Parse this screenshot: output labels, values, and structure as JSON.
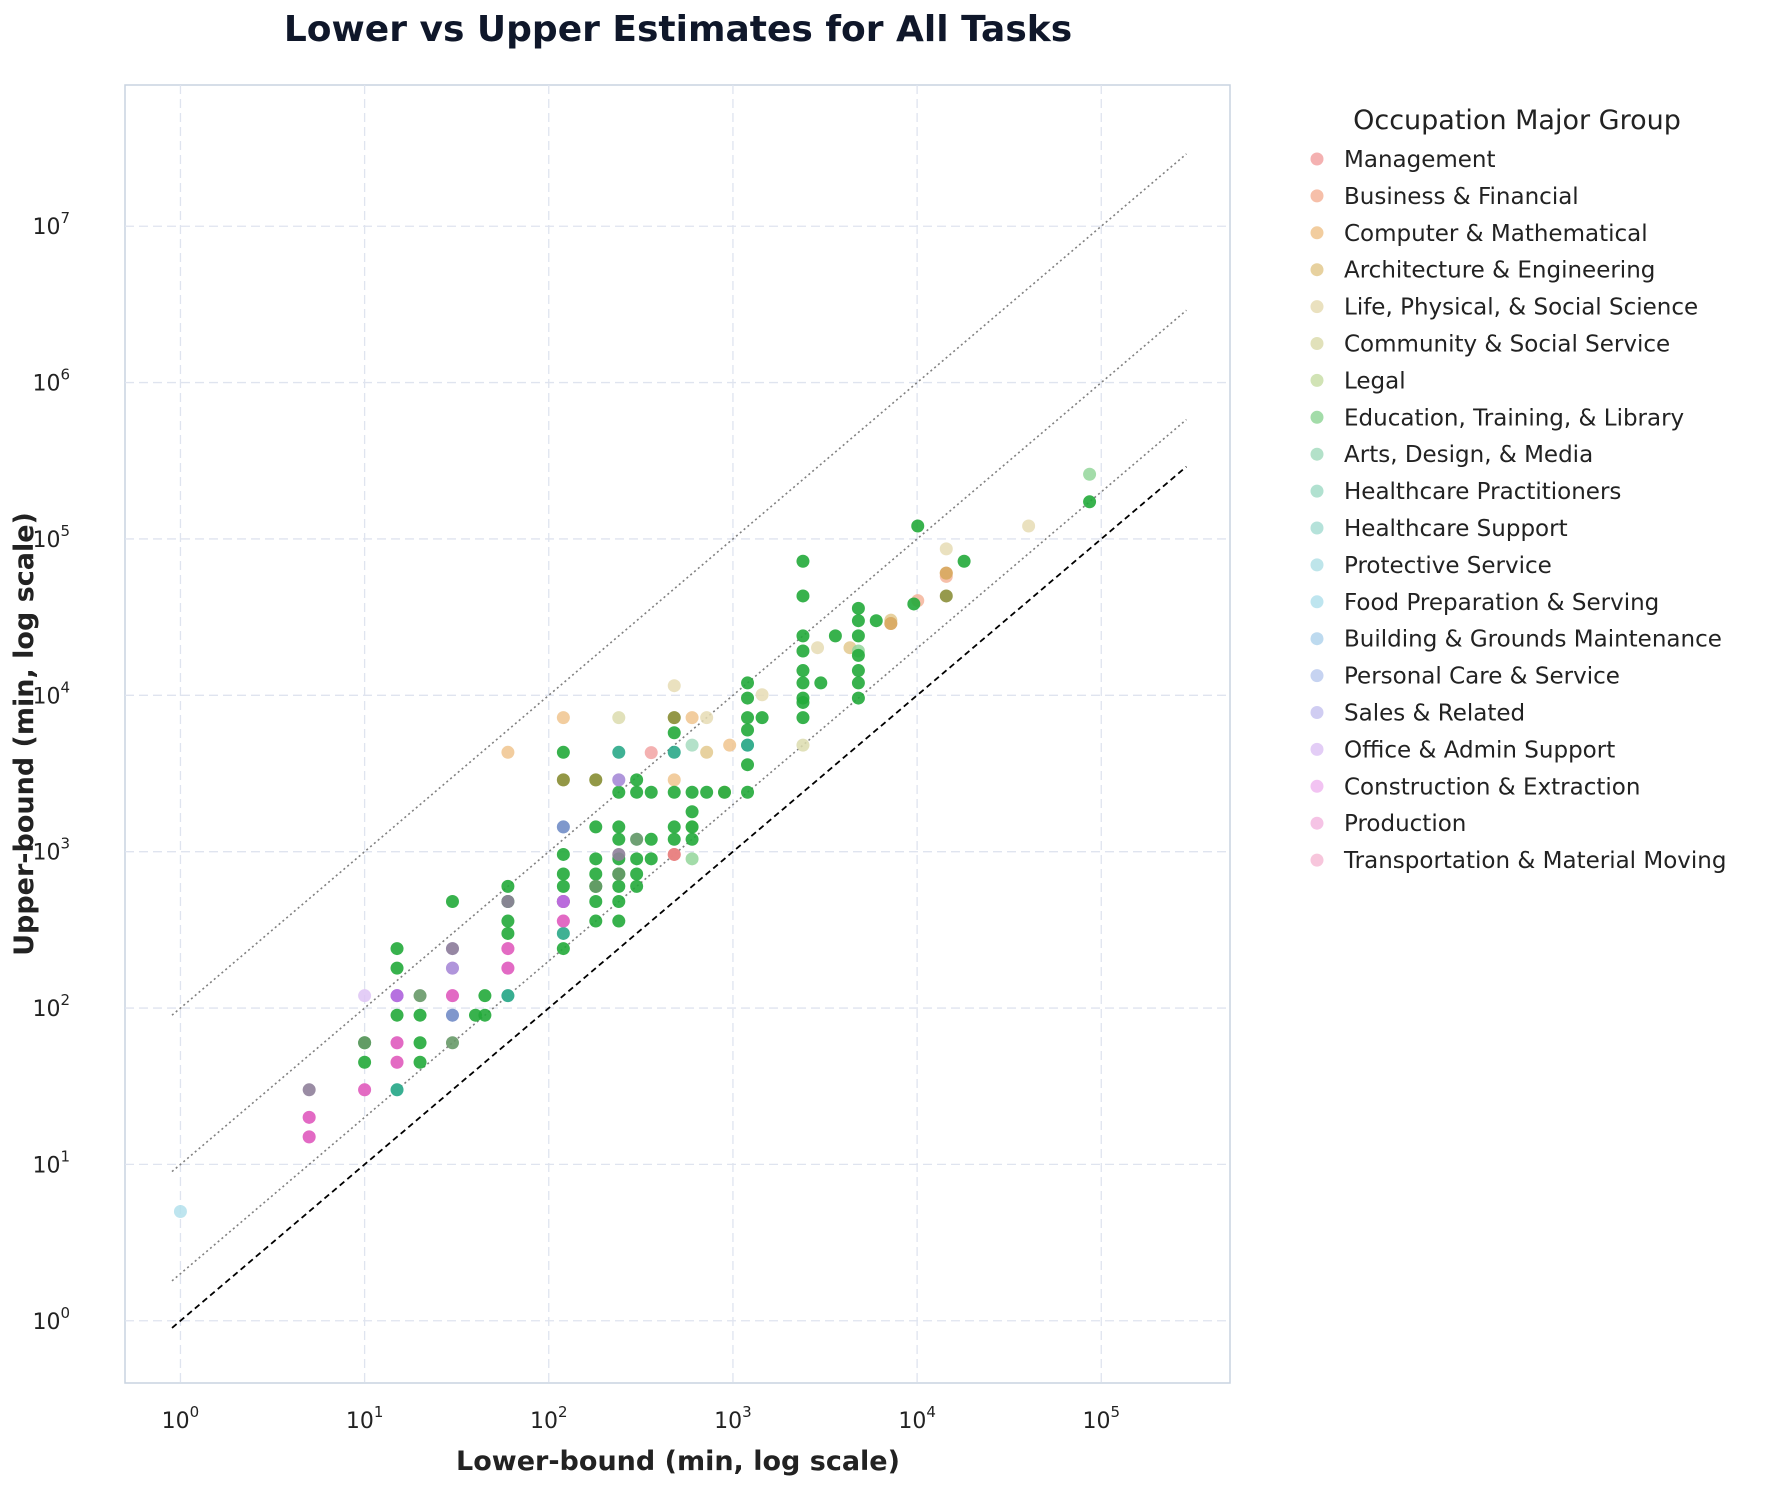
{
  "chart_data": {
    "type": "scatter",
    "title": "Lower vs Upper Estimates for All Tasks",
    "xlabel": "Lower-bound (min, log scale)",
    "ylabel": "Upper-bound (min, log scale)",
    "xscale": "log",
    "yscale": "log",
    "xlim": [
      0.5,
      500000
    ],
    "ylim": [
      0.4,
      80000000
    ],
    "grid": true,
    "x_ticks": [
      {
        "base": "10",
        "exp": "0",
        "value": 1
      },
      {
        "base": "10",
        "exp": "1",
        "value": 10
      },
      {
        "base": "10",
        "exp": "2",
        "value": 100
      },
      {
        "base": "10",
        "exp": "3",
        "value": 1000
      },
      {
        "base": "10",
        "exp": "4",
        "value": 10000
      },
      {
        "base": "10",
        "exp": "5",
        "value": 100000
      }
    ],
    "y_ticks": [
      {
        "base": "10",
        "exp": "0",
        "value": 1
      },
      {
        "base": "10",
        "exp": "1",
        "value": 10
      },
      {
        "base": "10",
        "exp": "2",
        "value": 100
      },
      {
        "base": "10",
        "exp": "3",
        "value": 1000
      },
      {
        "base": "10",
        "exp": "4",
        "value": 10000
      },
      {
        "base": "10",
        "exp": "5",
        "value": 100000
      },
      {
        "base": "10",
        "exp": "6",
        "value": 1000000
      },
      {
        "base": "10",
        "exp": "7",
        "value": 10000000
      }
    ],
    "reference_lines": [
      {
        "style": "dashed",
        "color": "#000000",
        "x": [
          0.9,
          290000
        ],
        "y": [
          0.9,
          290000
        ]
      },
      {
        "style": "dotted",
        "color": "#808080",
        "x": [
          0.9,
          290000
        ],
        "y": [
          1.8,
          580000
        ]
      },
      {
        "style": "dotted",
        "color": "#808080",
        "x": [
          0.9,
          290000
        ],
        "y": [
          9,
          2900000
        ]
      },
      {
        "style": "dotted",
        "color": "#808080",
        "x": [
          0.9,
          290000
        ],
        "y": [
          90,
          29000000
        ]
      }
    ],
    "legend": {
      "title": "Occupation Major Group",
      "placement": "outside-right"
    },
    "series": [
      {
        "name": "Management",
        "color": "#f2a3a3",
        "points": [
          [
            360,
            4300
          ],
          [
            480,
            960
          ]
        ]
      },
      {
        "name": "Business & Financial",
        "color": "#f5b49a",
        "points": [
          [
            14400,
            57600
          ],
          [
            10080,
            40320
          ]
        ]
      },
      {
        "name": "Computer & Mathematical",
        "color": "#f0c48e",
        "points": [
          [
            60,
            4320
          ],
          [
            120,
            7200
          ],
          [
            480,
            2880
          ],
          [
            600,
            7200
          ],
          [
            960,
            4800
          ],
          [
            7200,
            28800
          ],
          [
            14400,
            60480
          ]
        ]
      },
      {
        "name": "Architecture & Engineering",
        "color": "#e3c98e",
        "points": [
          [
            720,
            4320
          ],
          [
            900,
            2400
          ],
          [
            4320,
            20160
          ],
          [
            7200,
            30240
          ]
        ]
      },
      {
        "name": "Life, Physical, & Social Science",
        "color": "#e6dcb4",
        "points": [
          [
            480,
            11520
          ],
          [
            720,
            7200
          ],
          [
            1440,
            10080
          ],
          [
            2880,
            20160
          ],
          [
            14400,
            86400
          ],
          [
            40320,
            120960
          ]
        ]
      },
      {
        "name": "Community & Social Service",
        "color": "#dcdcae",
        "points": [
          [
            240,
            7200
          ],
          [
            120,
            2880
          ],
          [
            480,
            7200
          ],
          [
            2400,
            4800
          ]
        ]
      },
      {
        "name": "Legal",
        "color": "#c9dea8",
        "points": [
          [
            180,
            2880
          ],
          [
            600,
            1440
          ]
        ]
      },
      {
        "name": "Education, Training, & Library",
        "color": "#93d69a",
        "points": [
          [
            86400,
            259200
          ],
          [
            600,
            900
          ],
          [
            4800,
            19200
          ]
        ]
      },
      {
        "name": "Arts, Design, & Media",
        "color": "#a6dcc0",
        "points": [
          [
            600,
            4800
          ]
        ]
      },
      {
        "name": "Healthcare Practitioners",
        "color": "#a3dcc8",
        "points": [
          [
            1200,
            4800
          ]
        ]
      },
      {
        "name": "Healthcare Support",
        "color": "#a8ddd4",
        "points": [
          [
            300,
            1200
          ],
          [
            60,
            120
          ]
        ]
      },
      {
        "name": "Protective Service",
        "color": "#b3e0e6",
        "points": [
          [
            15,
            30
          ]
        ]
      },
      {
        "name": "Food Preparation & Serving",
        "color": "#b3e0ec",
        "points": [
          [
            1,
            5
          ]
        ]
      },
      {
        "name": "Building & Grounds Maintenance",
        "color": "#b2d3ec",
        "points": [
          [
            120,
            1440
          ]
        ]
      },
      {
        "name": "Personal Care & Service",
        "color": "#bccbee",
        "points": [
          [
            30,
            90
          ]
        ]
      },
      {
        "name": "Sales & Related",
        "color": "#c8c4f0",
        "points": [
          [
            30,
            240
          ]
        ]
      },
      {
        "name": "Office & Admin Support",
        "color": "#dec4f4",
        "points": [
          [
            10,
            120
          ],
          [
            240,
            2880
          ]
        ]
      },
      {
        "name": "Construction & Extraction",
        "color": "#f0b8f0",
        "points": [
          [
            15,
            120
          ],
          [
            30,
            180
          ]
        ]
      },
      {
        "name": "Production",
        "color": "#f3b8e0",
        "points": [
          [
            5,
            20
          ],
          [
            5,
            15
          ],
          [
            15,
            60
          ],
          [
            30,
            120
          ],
          [
            60,
            180
          ],
          [
            120,
            360
          ]
        ]
      },
      {
        "name": "Transportation & Material Moving",
        "color": "#f6bcd6",
        "points": [
          [
            10,
            30
          ],
          [
            15,
            45
          ],
          [
            60,
            240
          ],
          [
            120,
            480
          ]
        ]
      }
    ],
    "overlay_points": [
      {
        "color": "#22aa3a",
        "points": [
          [
            10,
            45
          ],
          [
            10,
            60
          ],
          [
            15,
            90
          ],
          [
            15,
            180
          ],
          [
            15,
            240
          ],
          [
            20,
            45
          ],
          [
            20,
            60
          ],
          [
            20,
            90
          ],
          [
            30,
            480
          ],
          [
            40,
            90
          ],
          [
            45,
            90
          ],
          [
            45,
            120
          ],
          [
            60,
            300
          ],
          [
            60,
            360
          ],
          [
            60,
            480
          ],
          [
            60,
            600
          ],
          [
            120,
            240
          ],
          [
            120,
            480
          ],
          [
            120,
            600
          ],
          [
            120,
            720
          ],
          [
            120,
            960
          ],
          [
            120,
            4320
          ],
          [
            180,
            360
          ],
          [
            180,
            480
          ],
          [
            180,
            600
          ],
          [
            180,
            720
          ],
          [
            180,
            900
          ],
          [
            180,
            1440
          ],
          [
            240,
            360
          ],
          [
            240,
            480
          ],
          [
            240,
            600
          ],
          [
            240,
            720
          ],
          [
            240,
            900
          ],
          [
            240,
            1200
          ],
          [
            240,
            1440
          ],
          [
            240,
            2400
          ],
          [
            300,
            600
          ],
          [
            300,
            720
          ],
          [
            300,
            900
          ],
          [
            300,
            2400
          ],
          [
            300,
            2880
          ],
          [
            360,
            900
          ],
          [
            360,
            1200
          ],
          [
            360,
            2400
          ],
          [
            480,
            1200
          ],
          [
            480,
            1440
          ],
          [
            480,
            2400
          ],
          [
            480,
            5760
          ],
          [
            600,
            1200
          ],
          [
            600,
            1440
          ],
          [
            600,
            1800
          ],
          [
            600,
            2400
          ],
          [
            720,
            2400
          ],
          [
            900,
            2400
          ],
          [
            1200,
            2400
          ],
          [
            1200,
            3600
          ],
          [
            1200,
            6000
          ],
          [
            1200,
            7200
          ],
          [
            1200,
            9600
          ],
          [
            1200,
            12000
          ],
          [
            1440,
            7200
          ],
          [
            2400,
            7200
          ],
          [
            2400,
            9000
          ],
          [
            2400,
            9600
          ],
          [
            2400,
            12000
          ],
          [
            2400,
            14400
          ],
          [
            2400,
            19200
          ],
          [
            2400,
            24000
          ],
          [
            2400,
            43200
          ],
          [
            2400,
            72000
          ],
          [
            3000,
            12000
          ],
          [
            3600,
            24000
          ],
          [
            4800,
            9600
          ],
          [
            4800,
            12000
          ],
          [
            4800,
            14400
          ],
          [
            4800,
            18000
          ],
          [
            4800,
            24000
          ],
          [
            4800,
            30000
          ],
          [
            4800,
            36000
          ],
          [
            6000,
            30000
          ],
          [
            9600,
            38400
          ],
          [
            10080,
            120960
          ],
          [
            18000,
            72000
          ],
          [
            86400,
            172800
          ]
        ]
      },
      {
        "color": "#2aa888",
        "points": [
          [
            15,
            30
          ],
          [
            120,
            300
          ],
          [
            240,
            4320
          ],
          [
            480,
            4320
          ],
          [
            1200,
            4800
          ],
          [
            60,
            120
          ]
        ]
      },
      {
        "color": "#679968",
        "points": [
          [
            10,
            60
          ],
          [
            20,
            120
          ],
          [
            30,
            60
          ],
          [
            180,
            600
          ],
          [
            240,
            720
          ],
          [
            300,
            1200
          ]
        ]
      },
      {
        "color": "#8b8f3a",
        "points": [
          [
            120,
            2880
          ],
          [
            180,
            2880
          ],
          [
            480,
            7200
          ],
          [
            14400,
            43200
          ]
        ]
      },
      {
        "color": "#8f7f9a",
        "points": [
          [
            5,
            30
          ],
          [
            30,
            240
          ],
          [
            60,
            480
          ],
          [
            240,
            960
          ]
        ]
      },
      {
        "color": "#7890c8",
        "points": [
          [
            30,
            90
          ],
          [
            120,
            1440
          ]
        ]
      },
      {
        "color": "#a890d8",
        "points": [
          [
            30,
            180
          ],
          [
            240,
            2880
          ],
          [
            15,
            120
          ]
        ]
      },
      {
        "color": "#e060c0",
        "points": [
          [
            5,
            15
          ],
          [
            5,
            20
          ],
          [
            10,
            30
          ],
          [
            15,
            45
          ],
          [
            15,
            60
          ],
          [
            30,
            120
          ],
          [
            60,
            180
          ],
          [
            60,
            240
          ],
          [
            120,
            360
          ],
          [
            120,
            480
          ]
        ]
      },
      {
        "color": "#b76de0",
        "points": [
          [
            120,
            480
          ],
          [
            15,
            120
          ]
        ]
      },
      {
        "color": "#e88080",
        "points": [
          [
            480,
            960
          ]
        ]
      },
      {
        "color": "#d8a862",
        "points": [
          [
            7200,
            28800
          ],
          [
            14400,
            60480
          ]
        ]
      }
    ]
  }
}
